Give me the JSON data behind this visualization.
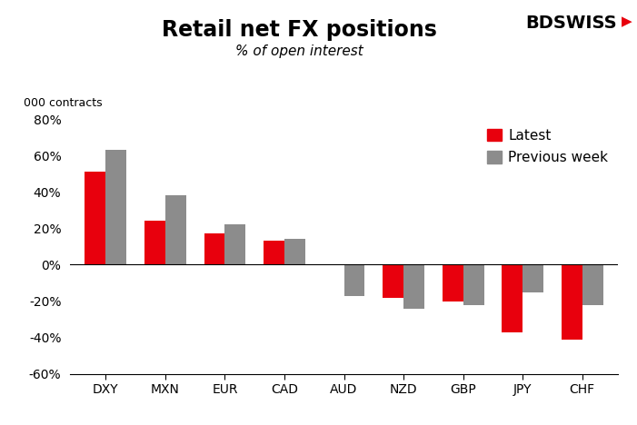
{
  "categories": [
    "DXY",
    "MXN",
    "EUR",
    "CAD",
    "AUD",
    "NZD",
    "GBP",
    "JPY",
    "CHF"
  ],
  "latest": [
    51,
    24,
    17,
    13,
    0,
    -18,
    -20,
    -37,
    -41
  ],
  "previous_week": [
    63,
    38,
    22,
    14,
    -17,
    -24,
    -22,
    -15,
    -22
  ],
  "color_latest": "#e8000d",
  "color_previous": "#8c8c8c",
  "title": "Retail net FX positions",
  "subtitle": "% of open interest",
  "ylabel": "000 contracts",
  "ylim": [
    -60,
    80
  ],
  "yticks": [
    -60,
    -40,
    -20,
    0,
    20,
    40,
    60,
    80
  ],
  "ytick_labels": [
    "-60%",
    "-40%",
    "-20%",
    "0%",
    "20%",
    "40%",
    "60%",
    "80%"
  ],
  "legend_latest": "Latest",
  "legend_previous": "Previous week",
  "bar_width": 0.35,
  "background_color": "#ffffff",
  "title_fontsize": 17,
  "subtitle_fontsize": 11,
  "ylabel_fontsize": 9,
  "tick_fontsize": 10,
  "legend_fontsize": 11,
  "logo_bd_color": "#000000",
  "logo_swiss_color": "#000000",
  "logo_arrow_color": "#e8000d"
}
